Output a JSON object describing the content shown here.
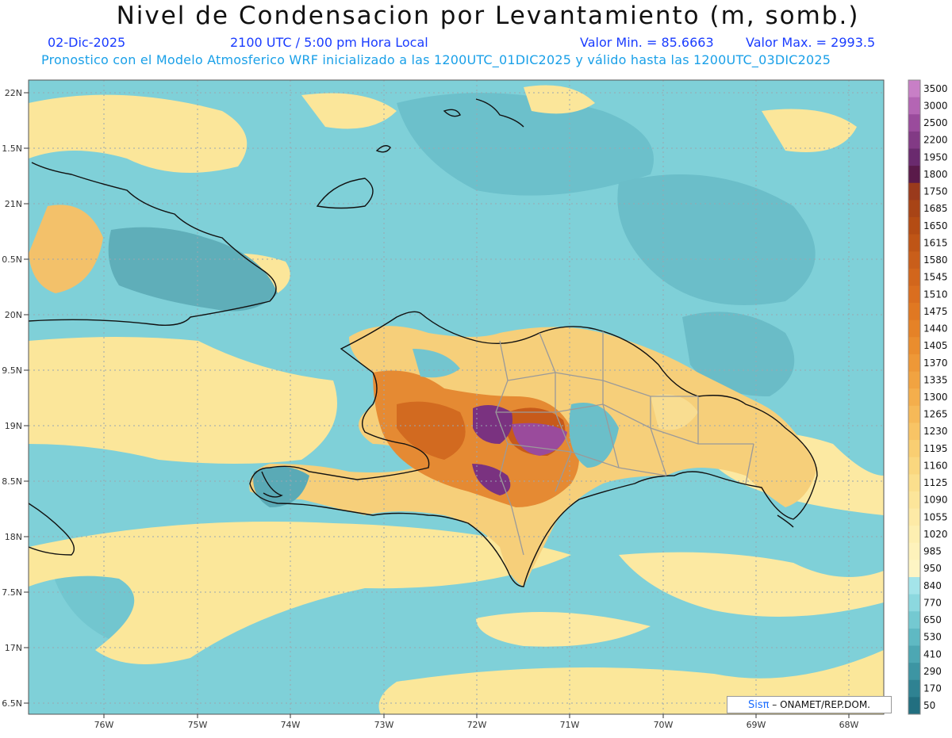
{
  "header": {
    "title": "Nivel de Condensacion por Levantamiento (m, somb.)",
    "date": "02-Dic-2025",
    "time": "2100 UTC / 5:00 pm Hora Local",
    "min_label": "Valor Min. = 85.6663",
    "max_label": "Valor Max. = 2993.5",
    "info": "Pronostico con el Modelo Atmosferico WRF inicializado a las 1200UTC_01DIC2025 y válido hasta las  1200UTC_03DIC2025"
  },
  "map": {
    "lat_labels": [
      "22N",
      "1.5N",
      "21N",
      "0.5N",
      "20N",
      "9.5N",
      "19N",
      "8.5N",
      "18N",
      "7.5N",
      "17N",
      "6.5N"
    ],
    "lon_labels": [
      "76W",
      "75W",
      "74W",
      "73W",
      "72W",
      "71W",
      "70W",
      "69W",
      "68W"
    ],
    "ocean_color": "#7ccfd6",
    "land_color": "#f2e9a0"
  },
  "colorbar": {
    "levels": [
      "3500",
      "3000",
      "2500",
      "2200",
      "1950",
      "1800",
      "1750",
      "1685",
      "1650",
      "1615",
      "1580",
      "1545",
      "1510",
      "1475",
      "1440",
      "1405",
      "1370",
      "1335",
      "1300",
      "1265",
      "1230",
      "1195",
      "1160",
      "1125",
      "1090",
      "1055",
      "1020",
      "985",
      "950",
      "840",
      "770",
      "650",
      "530",
      "410",
      "290",
      "170",
      "50"
    ],
    "colors": [
      "#c87fc6",
      "#b465b4",
      "#9a4b9c",
      "#823a85",
      "#6a2a6e",
      "#5a1a4a",
      "#9a3a1c",
      "#a84416",
      "#b44c14",
      "#bf5516",
      "#c95e1a",
      "#d2661c",
      "#da6e1f",
      "#e07822",
      "#e58227",
      "#ea8d2e",
      "#ee9837",
      "#f1a341",
      "#f4ae4c",
      "#f6b958",
      "#f8c465",
      "#f9ce72",
      "#fad77f",
      "#fbdf8d",
      "#fce59a",
      "#fdeaa6",
      "#fdefb1",
      "#fef2bb",
      "#fef5c4",
      "#a4e4ea",
      "#8cd8df",
      "#74c9d1",
      "#5fb9c3",
      "#4da7b3",
      "#3d95a3",
      "#2f8292",
      "#226f80"
    ]
  },
  "credit": {
    "brand": "Sisπ",
    "text": "– ONAMET/REP.DOM."
  }
}
